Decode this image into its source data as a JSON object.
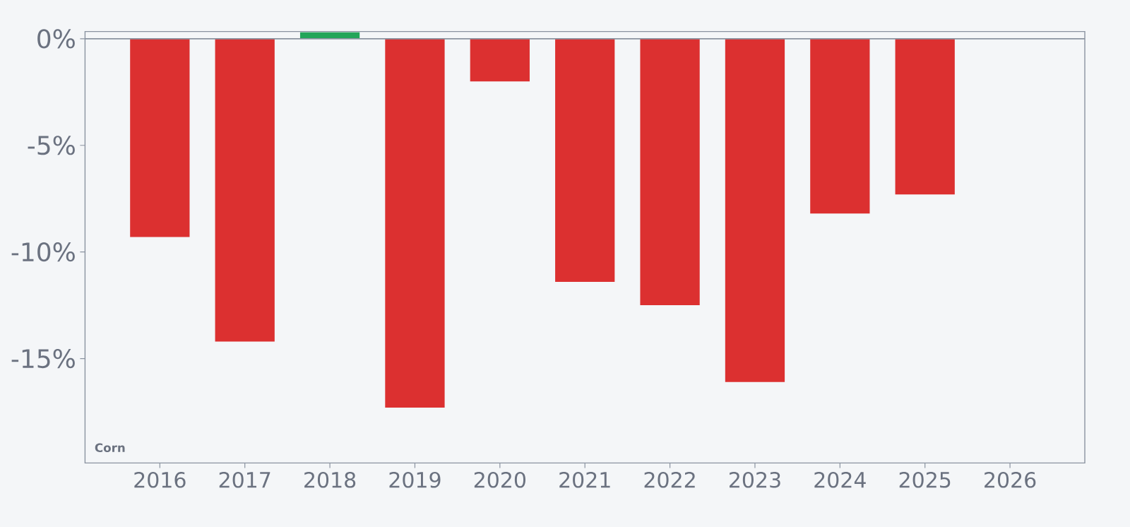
{
  "chart_data": {
    "type": "bar",
    "categories": [
      "2016",
      "2017",
      "2018",
      "2019",
      "2020",
      "2021",
      "2022",
      "2023",
      "2024",
      "2025",
      "2026"
    ],
    "values": [
      -9.3,
      -14.2,
      0.3,
      -17.3,
      -2.0,
      -11.4,
      -12.5,
      -16.1,
      -8.2,
      -7.3,
      null
    ],
    "colors": [
      "#dc3030",
      "#dc3030",
      "#23a559",
      "#dc3030",
      "#dc3030",
      "#dc3030",
      "#dc3030",
      "#dc3030",
      "#dc3030",
      "#dc3030",
      "#dc3030"
    ],
    "ylim": [
      -19.9,
      0.34
    ],
    "yticks": [
      {
        "value": 0,
        "label": "0%"
      },
      {
        "value": -5,
        "label": "-5%"
      },
      {
        "value": -10,
        "label": "-10%"
      },
      {
        "value": -15,
        "label": "-15%"
      }
    ],
    "ref_lines": [
      {
        "axis": "y",
        "value": 0,
        "color": "#8a93a0"
      }
    ],
    "annotations": [
      "Corn"
    ]
  }
}
